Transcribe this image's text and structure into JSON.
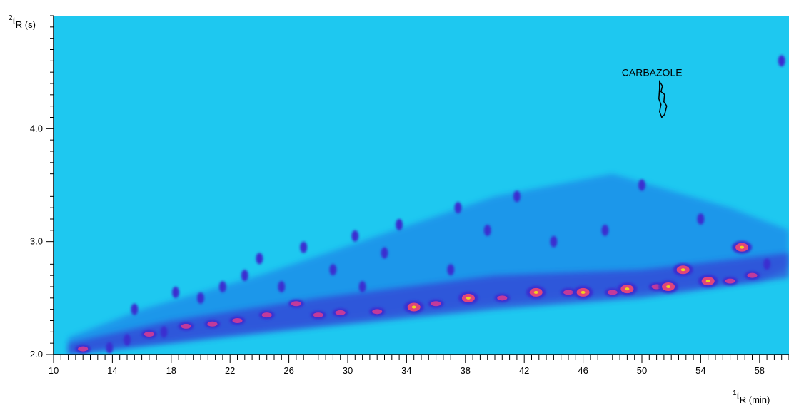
{
  "chart_data": {
    "type": "heatmap",
    "title": "",
    "xlabel_parts": {
      "sup": "1",
      "main": "t",
      "sub": "R (min)"
    },
    "ylabel_parts": {
      "sup": "2",
      "main": "t",
      "sub": "R (s)"
    },
    "xlim": [
      10,
      60
    ],
    "ylim": [
      2.0,
      5.0
    ],
    "x_major_ticks": [
      10,
      14,
      18,
      22,
      26,
      30,
      34,
      38,
      42,
      46,
      50,
      54,
      58
    ],
    "x_minor_step": 0.5,
    "y_major_ticks": [
      2.0,
      3.0,
      4.0
    ],
    "y_major_labels": [
      "2.0",
      "3.0",
      "4.0"
    ],
    "y_minor_step": 0.1,
    "grid": false,
    "colors": {
      "background": "#1ec8f0",
      "low": "#1b6fe6",
      "mid": "#3b2fd0",
      "high": "#c23a9a",
      "peak": "#e0457a",
      "max": "#f0d020"
    },
    "annotations": [
      {
        "text": "CARBAZOLE",
        "x": 51.3,
        "y": 4.1
      }
    ],
    "peaks": [
      {
        "x": 12.0,
        "y": 2.05,
        "intensity": "high"
      },
      {
        "x": 13.8,
        "y": 2.06,
        "intensity": "mid"
      },
      {
        "x": 15.0,
        "y": 2.13,
        "intensity": "mid"
      },
      {
        "x": 15.5,
        "y": 2.4,
        "intensity": "mid"
      },
      {
        "x": 16.5,
        "y": 2.18,
        "intensity": "high"
      },
      {
        "x": 17.5,
        "y": 2.2,
        "intensity": "mid"
      },
      {
        "x": 18.3,
        "y": 2.55,
        "intensity": "mid"
      },
      {
        "x": 19.0,
        "y": 2.25,
        "intensity": "high"
      },
      {
        "x": 20.0,
        "y": 2.5,
        "intensity": "mid"
      },
      {
        "x": 20.8,
        "y": 2.27,
        "intensity": "high"
      },
      {
        "x": 21.5,
        "y": 2.6,
        "intensity": "mid"
      },
      {
        "x": 22.5,
        "y": 2.3,
        "intensity": "high"
      },
      {
        "x": 23.0,
        "y": 2.7,
        "intensity": "mid"
      },
      {
        "x": 24.0,
        "y": 2.85,
        "intensity": "mid"
      },
      {
        "x": 24.5,
        "y": 2.35,
        "intensity": "high"
      },
      {
        "x": 25.5,
        "y": 2.6,
        "intensity": "mid"
      },
      {
        "x": 26.5,
        "y": 2.45,
        "intensity": "high"
      },
      {
        "x": 27.0,
        "y": 2.95,
        "intensity": "mid"
      },
      {
        "x": 28.0,
        "y": 2.35,
        "intensity": "high"
      },
      {
        "x": 29.0,
        "y": 2.75,
        "intensity": "mid"
      },
      {
        "x": 29.5,
        "y": 2.37,
        "intensity": "high"
      },
      {
        "x": 30.5,
        "y": 3.05,
        "intensity": "mid"
      },
      {
        "x": 31.0,
        "y": 2.6,
        "intensity": "mid"
      },
      {
        "x": 32.0,
        "y": 2.38,
        "intensity": "high"
      },
      {
        "x": 32.5,
        "y": 2.9,
        "intensity": "mid"
      },
      {
        "x": 33.5,
        "y": 3.15,
        "intensity": "mid"
      },
      {
        "x": 34.5,
        "y": 2.42,
        "intensity": "max"
      },
      {
        "x": 36.0,
        "y": 2.45,
        "intensity": "high"
      },
      {
        "x": 37.0,
        "y": 2.75,
        "intensity": "mid"
      },
      {
        "x": 37.5,
        "y": 3.3,
        "intensity": "mid"
      },
      {
        "x": 38.2,
        "y": 2.5,
        "intensity": "max"
      },
      {
        "x": 39.5,
        "y": 3.1,
        "intensity": "mid"
      },
      {
        "x": 40.5,
        "y": 2.5,
        "intensity": "high"
      },
      {
        "x": 41.5,
        "y": 3.4,
        "intensity": "mid"
      },
      {
        "x": 42.8,
        "y": 2.55,
        "intensity": "max"
      },
      {
        "x": 44.0,
        "y": 3.0,
        "intensity": "mid"
      },
      {
        "x": 45.0,
        "y": 2.55,
        "intensity": "high"
      },
      {
        "x": 46.0,
        "y": 2.55,
        "intensity": "max"
      },
      {
        "x": 47.5,
        "y": 3.1,
        "intensity": "mid"
      },
      {
        "x": 48.0,
        "y": 2.55,
        "intensity": "high"
      },
      {
        "x": 49.0,
        "y": 2.58,
        "intensity": "max"
      },
      {
        "x": 50.0,
        "y": 3.5,
        "intensity": "mid"
      },
      {
        "x": 51.0,
        "y": 2.6,
        "intensity": "high"
      },
      {
        "x": 51.8,
        "y": 2.6,
        "intensity": "max"
      },
      {
        "x": 52.8,
        "y": 2.75,
        "intensity": "max"
      },
      {
        "x": 54.0,
        "y": 3.2,
        "intensity": "mid"
      },
      {
        "x": 54.5,
        "y": 2.65,
        "intensity": "max"
      },
      {
        "x": 56.0,
        "y": 2.65,
        "intensity": "high"
      },
      {
        "x": 56.8,
        "y": 2.95,
        "intensity": "max"
      },
      {
        "x": 57.5,
        "y": 2.7,
        "intensity": "high"
      },
      {
        "x": 58.5,
        "y": 2.8,
        "intensity": "mid"
      },
      {
        "x": 59.5,
        "y": 4.6,
        "intensity": "mid"
      }
    ]
  }
}
